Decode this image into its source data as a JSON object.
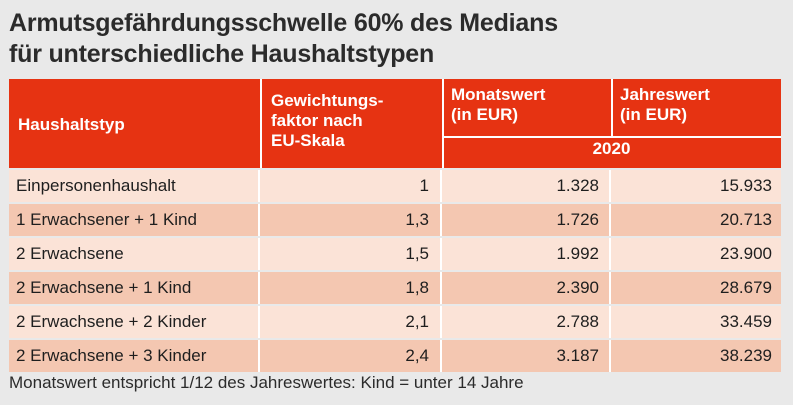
{
  "title_line1": "Armutsgefährdungsschwelle 60% des Medians",
  "title_line2": "für unterschiedliche Haushaltstypen",
  "colors": {
    "header": "#e63312",
    "row_light": "#fbe3d7",
    "row_dark": "#f4c7b1",
    "background": "#e9e9e9"
  },
  "header": {
    "typ": "Haushaltstyp",
    "gew_1": "Gewichtungs-",
    "gew_2": "faktor nach",
    "gew_3": "EU-Skala",
    "mon_1": "Monatswert",
    "mon_2": "(in EUR)",
    "jah_1": "Jahreswert",
    "jah_2": "(in EUR)",
    "year": "2020"
  },
  "rows": [
    {
      "typ": "Einpersonenhaushalt",
      "faktor": "1",
      "monat": "1.328",
      "jahr": "15.933"
    },
    {
      "typ": "1 Erwachsener + 1 Kind",
      "faktor": "1,3",
      "monat": "1.726",
      "jahr": "20.713"
    },
    {
      "typ": "2 Erwachsene",
      "faktor": "1,5",
      "monat": "1.992",
      "jahr": "23.900"
    },
    {
      "typ": "2 Erwachsene + 1 Kind",
      "faktor": "1,8",
      "monat": "2.390",
      "jahr": "28.679"
    },
    {
      "typ": "2 Erwachsene + 2 Kinder",
      "faktor": "2,1",
      "monat": "2.788",
      "jahr": "33.459"
    },
    {
      "typ": "2 Erwachsene + 3 Kinder",
      "faktor": "2,4",
      "monat": "3.187",
      "jahr": "38.239"
    }
  ],
  "footnote": "Monatswert entspricht 1/12 des Jahreswertes: Kind = unter 14 Jahre"
}
